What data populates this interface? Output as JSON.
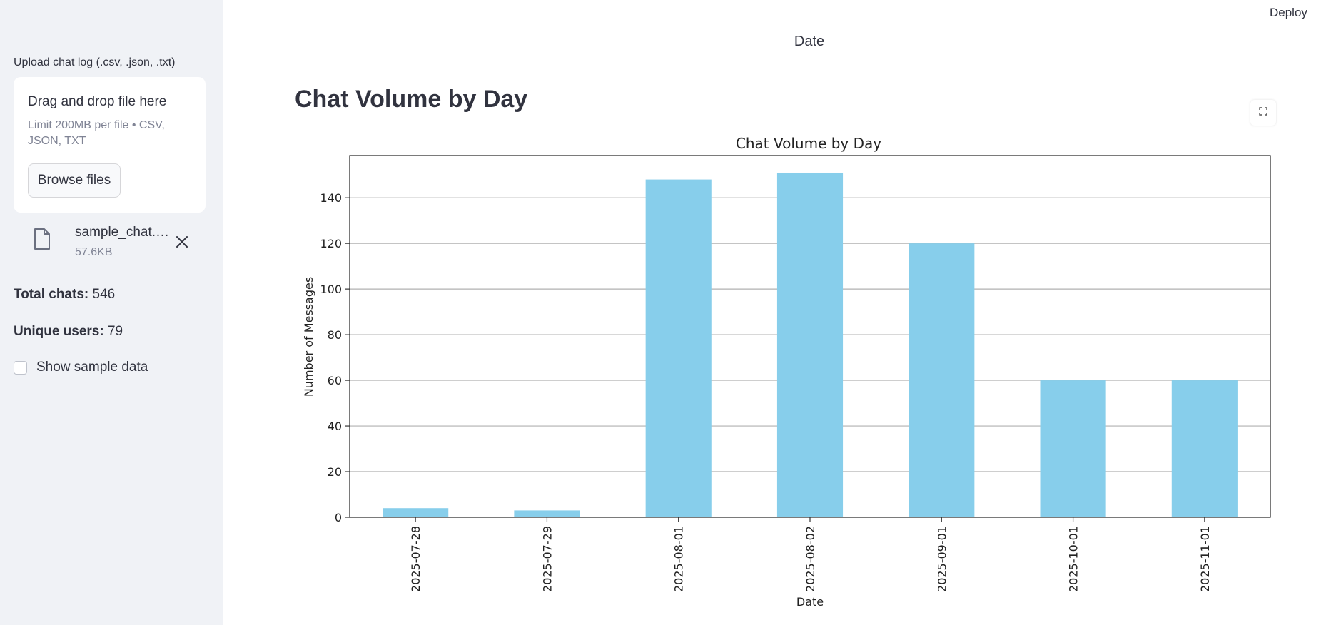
{
  "sidebar": {
    "upload_label": "Upload chat log (.csv, .json, .txt)",
    "dropzone": {
      "title": "Drag and drop file here",
      "subtitle": "Limit 200MB per file • CSV, JSON, TXT",
      "browse_label": "Browse files"
    },
    "file": {
      "name": "sample_chat.…",
      "size": "57.6KB",
      "icon": "file-icon",
      "close_icon": "close-icon"
    },
    "stats": {
      "total_chats_label": "Total chats:",
      "total_chats_value": "546",
      "unique_users_label": "Unique users:",
      "unique_users_value": "79"
    },
    "show_sample": {
      "label": "Show sample data",
      "checked": false
    }
  },
  "header": {
    "deploy_label": "Deploy"
  },
  "main": {
    "top_text": "Date",
    "title": "Chat Volume by Day",
    "fullscreen_icon": "expand-icon"
  },
  "colors": {
    "bar": "#87ceeb",
    "sidebar_bg": "#f0f2f6",
    "text": "#31333f"
  },
  "chart_data": {
    "type": "bar",
    "title": "Chat Volume by Day",
    "xlabel": "Date",
    "ylabel": "Number of Messages",
    "categories": [
      "2025-07-28",
      "2025-07-29",
      "2025-08-01",
      "2025-08-02",
      "2025-09-01",
      "2025-10-01",
      "2025-11-01"
    ],
    "values": [
      4,
      3,
      148,
      151,
      120,
      60,
      60
    ],
    "ylim": [
      0,
      158.5
    ],
    "yticks": [
      0,
      20,
      40,
      60,
      80,
      100,
      120,
      140
    ],
    "grid": "y",
    "legend": "none"
  }
}
